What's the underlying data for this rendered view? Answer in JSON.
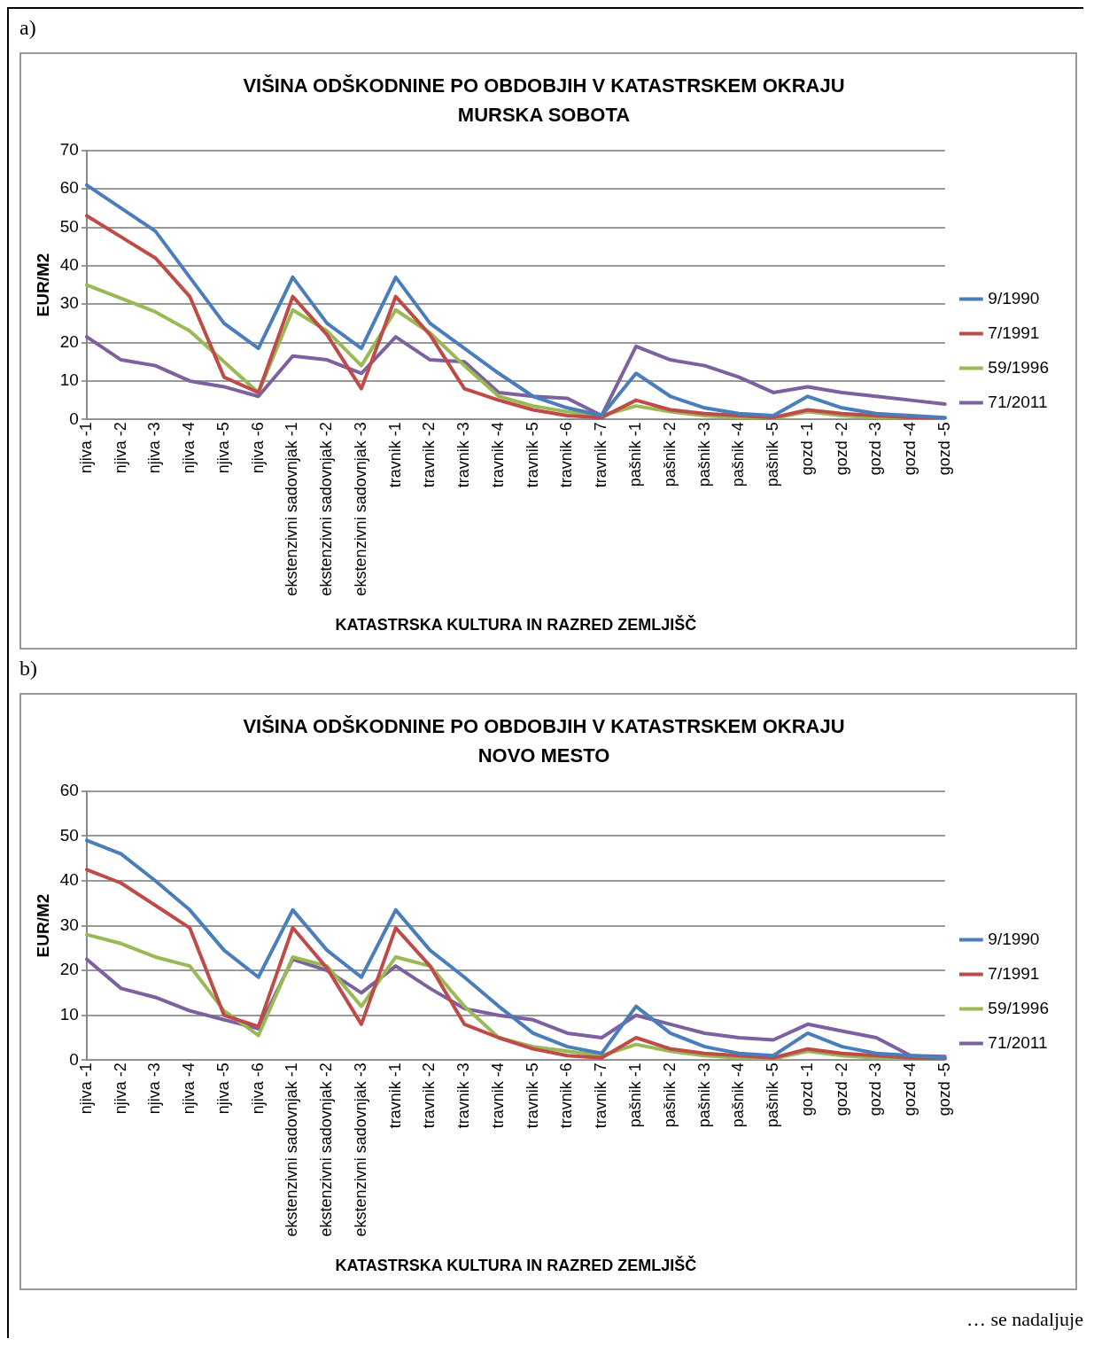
{
  "chart_data": [
    {
      "type": "line",
      "title": "VIŠINA ODŠKODNINE PO OBDOBJIH V KATASTRSKEM OKRAJU",
      "subtitle": "MURSKA SOBOTA",
      "xlabel": "KATASTRSKA KULTURA IN RAZRED ZEMLJIŠČ",
      "ylabel": "EUR/M2",
      "annotations": [
        "a)"
      ],
      "categories": [
        "njiva -1",
        "njiva -2",
        "njiva -3",
        "njiva -4",
        "njiva -5",
        "njiva -6",
        "ekstenzivni sadovnjak -1",
        "ekstenzivni sadovnjak -2",
        "ekstenzivni sadovnjak -3",
        "travnik -1",
        "travnik -2",
        "travnik -3",
        "travnik -4",
        "travnik -5",
        "travnik -6",
        "travnik -7",
        "pašnik -1",
        "pašnik -2",
        "pašnik -3",
        "pašnik -4",
        "pašnik -5",
        "gozd -1",
        "gozd -2",
        "gozd -3",
        "gozd -4",
        "gozd -5"
      ],
      "series": [
        {
          "name": "9/1990",
          "color": "#4a7ebb",
          "values": [
            61,
            55,
            49,
            37,
            25,
            18.5,
            37,
            25,
            18.5,
            37,
            25,
            18.5,
            12,
            6,
            3,
            1,
            12,
            6,
            3,
            1.5,
            1,
            6,
            3,
            1.5,
            1,
            0.5
          ]
        },
        {
          "name": "7/1991",
          "color": "#be4b48",
          "values": [
            53,
            47.5,
            42,
            32,
            11,
            7,
            32,
            22,
            8,
            32,
            22,
            8,
            5,
            2.5,
            1,
            0.5,
            5,
            2.5,
            1.5,
            1,
            0.5,
            2.5,
            1.5,
            1,
            0.5,
            0.3
          ]
        },
        {
          "name": "59/1996",
          "color": "#98b954",
          "values": [
            35,
            31.5,
            28,
            23,
            15,
            7,
            28.5,
            23,
            14,
            28.5,
            22.5,
            14,
            6,
            3.5,
            2,
            1,
            3.5,
            2,
            1,
            0.5,
            0.3,
            2,
            1,
            0.5,
            0.3,
            0.2
          ]
        },
        {
          "name": "71/2011",
          "color": "#7d60a0",
          "values": [
            21.5,
            15.5,
            14,
            10,
            8.5,
            6,
            16.5,
            15.5,
            12,
            21.5,
            15.5,
            15,
            7,
            6,
            5.5,
            1,
            19,
            15.5,
            14,
            11,
            7,
            8.5,
            7,
            6,
            5,
            4
          ]
        }
      ],
      "ylim": [
        0,
        70
      ],
      "yticks": [
        0,
        10,
        20,
        30,
        40,
        50,
        60,
        70
      ],
      "grid": "y",
      "legend": "right",
      "marker": "none",
      "line_style": "solid"
    },
    {
      "type": "line",
      "title": "VIŠINA ODŠKODNINE PO OBDOBJIH V KATASTRSKEM OKRAJU",
      "subtitle": "NOVO MESTO",
      "xlabel": "KATASTRSKA KULTURA IN RAZRED ZEMLJIŠČ",
      "ylabel": "EUR/M2",
      "annotations": [
        "b)",
        "… se nadaljuje"
      ],
      "categories": [
        "njiva -1",
        "njiva -2",
        "njiva -3",
        "njiva -4",
        "njiva -5",
        "njiva -6",
        "ekstenzivni sadovnjak -1",
        "ekstenzivni sadovnjak -2",
        "ekstenzivni sadovnjak -3",
        "travnik -1",
        "travnik -2",
        "travnik -3",
        "travnik -4",
        "travnik -5",
        "travnik -6",
        "travnik -7",
        "pašnik -1",
        "pašnik -2",
        "pašnik -3",
        "pašnik -4",
        "pašnik -5",
        "gozd -1",
        "gozd -2",
        "gozd -3",
        "gozd -4",
        "gozd -5"
      ],
      "series": [
        {
          "name": "9/1990",
          "color": "#4a7ebb",
          "values": [
            49,
            46,
            40,
            33.5,
            24.5,
            18.5,
            33.5,
            24.5,
            18.5,
            33.5,
            24.5,
            18.5,
            12,
            6,
            3,
            1.5,
            12,
            6,
            3,
            1.5,
            1,
            6,
            3,
            1.5,
            1,
            0.5
          ]
        },
        {
          "name": "7/1991",
          "color": "#be4b48",
          "values": [
            42.5,
            39.5,
            34.5,
            29.5,
            10,
            7.5,
            29.5,
            20.5,
            8,
            29.5,
            21,
            8,
            5,
            2.5,
            1,
            0.5,
            5,
            2.5,
            1.5,
            1,
            0.5,
            2.5,
            1.5,
            1,
            0.5,
            0.3
          ]
        },
        {
          "name": "59/1996",
          "color": "#98b954",
          "values": [
            28,
            26,
            23,
            21,
            11,
            5.5,
            23,
            21,
            12,
            23,
            21,
            12,
            5,
            3,
            2,
            1,
            3.5,
            2,
            1,
            0.5,
            0.3,
            2,
            1,
            0.5,
            0.3,
            0.2
          ]
        },
        {
          "name": "71/2011",
          "color": "#7d60a0",
          "values": [
            22.5,
            16,
            14,
            11,
            9,
            7,
            22.5,
            20,
            15,
            21,
            16,
            11.5,
            10,
            9,
            6,
            5,
            10,
            8,
            6,
            5,
            4.5,
            8,
            6.5,
            5,
            1,
            0.8
          ]
        }
      ],
      "ylim": [
        0,
        60
      ],
      "yticks": [
        0,
        10,
        20,
        30,
        40,
        50,
        60
      ],
      "grid": "y",
      "legend": "right",
      "marker": "none",
      "line_style": "solid"
    }
  ]
}
